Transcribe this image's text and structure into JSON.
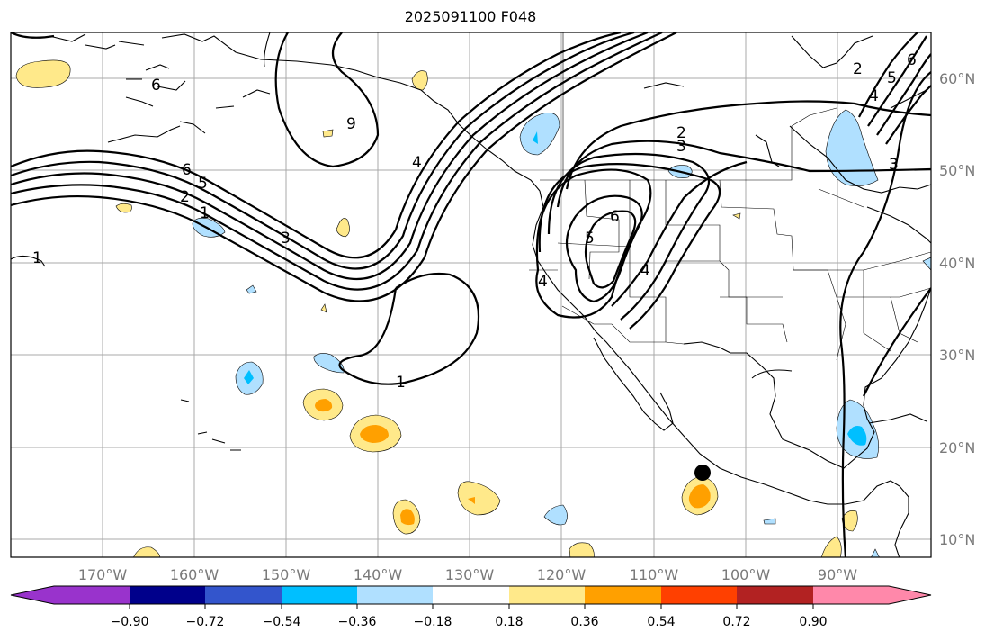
{
  "title": "2025091100 F048",
  "map": {
    "lon_ticks": [
      "170°W",
      "160°W",
      "150°W",
      "140°W",
      "130°W",
      "120°W",
      "110°W",
      "100°W",
      "90°W"
    ],
    "lat_ticks": [
      "60°N",
      "50°N",
      "40°N",
      "30°N",
      "20°N",
      "10°N"
    ],
    "contour_labels": [
      "6",
      "5",
      "2",
      "1",
      "3",
      "1",
      "4",
      "9",
      "1",
      "2",
      "3",
      "6",
      "5",
      "4",
      "4",
      "3",
      "4",
      "5",
      "2",
      "1"
    ],
    "marker": "black-dot"
  },
  "colorbar": {
    "ticks": [
      "−0.90",
      "−0.72",
      "−0.54",
      "−0.36",
      "−0.18",
      "0.18",
      "0.36",
      "0.54",
      "0.72",
      "0.90"
    ],
    "colors": [
      "#9933cc",
      "#00008b",
      "#3355cc",
      "#00bfff",
      "#b0e0ff",
      "#ffffff",
      "#ffe98a",
      "#ffa000",
      "#ff4000",
      "#b22222",
      "#ff88aa"
    ]
  },
  "colors": {
    "grid": "#999999",
    "contour": "#000000",
    "coast": "#000000"
  }
}
